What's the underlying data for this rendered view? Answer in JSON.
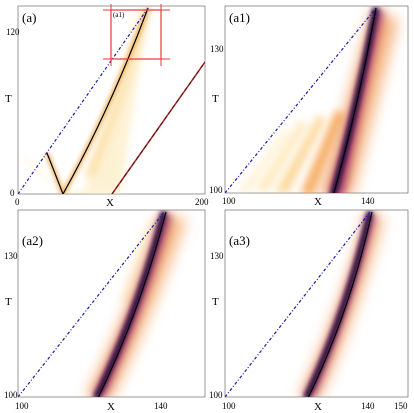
{
  "chart_data": [
    {
      "type": "heatmap",
      "panel_label": "(a)",
      "xlabel": "X",
      "ylabel": "T",
      "xlim": [
        0,
        200
      ],
      "ylim": [
        0,
        135
      ],
      "xticks": [
        "0",
        "200"
      ],
      "yticks": [
        "0",
        "120"
      ],
      "inset_label": "(a1)",
      "inset_box": {
        "x": [
          100,
          150
        ],
        "y": [
          100,
          150
        ]
      },
      "grid": false
    },
    {
      "type": "heatmap",
      "panel_label": "(a1)",
      "xlabel": "X",
      "ylabel": "T",
      "xlim": [
        100,
        150
      ],
      "ylim": [
        100,
        150
      ],
      "xticks": [
        "100",
        "140"
      ],
      "yticks": [
        "100",
        "130"
      ],
      "grid": false
    },
    {
      "type": "heatmap",
      "panel_label": "(a2)",
      "xlabel": "X",
      "ylabel": "T",
      "xlim": [
        100,
        150
      ],
      "ylim": [
        100,
        150
      ],
      "xticks": [
        "100",
        "140"
      ],
      "yticks": [
        "100",
        "130"
      ],
      "grid": false
    },
    {
      "type": "heatmap",
      "panel_label": "(a3)",
      "xlabel": "X",
      "ylabel": "T",
      "xlim": [
        100,
        150
      ],
      "ylim": [
        100,
        150
      ],
      "xticks": [
        "100",
        "140",
        "150"
      ],
      "yticks": [
        "100",
        "130"
      ],
      "grid": false
    }
  ],
  "colors": {
    "dark": "#2a0a40",
    "mid": "#7a1e5a",
    "warm": "#e8601c",
    "light": "#fbe6b0",
    "dotted_line": "#1a1aa8",
    "red_line": "#cc1111",
    "inset_box": "#e8383a"
  }
}
